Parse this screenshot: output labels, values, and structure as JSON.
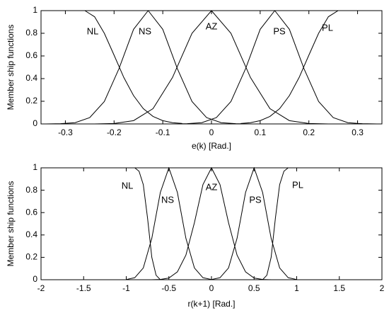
{
  "chart_data": [
    {
      "type": "line",
      "xlabel": "e(k) [Rad.]",
      "ylabel": "Member ship functions",
      "xlim": [
        -0.35,
        0.35
      ],
      "ylim": [
        0,
        1
      ],
      "xticks": [
        -0.3,
        -0.2,
        -0.1,
        0,
        0.1,
        0.2,
        0.3
      ],
      "yticks": [
        0,
        0.2,
        0.4,
        0.6,
        0.8,
        1
      ],
      "series": [
        {
          "name": "NL",
          "color": "#000000",
          "x": [
            -0.34,
            -0.3,
            -0.26,
            -0.24,
            -0.22,
            -0.2,
            -0.18,
            -0.16,
            -0.14,
            -0.12,
            -0.1,
            -0.08,
            -0.06
          ],
          "values": [
            1,
            1,
            1,
            0.946,
            0.8,
            0.607,
            0.41,
            0.25,
            0.135,
            0.066,
            0.029,
            0.011,
            0.004
          ]
        },
        {
          "name": "NS",
          "color": "#000000",
          "x": [
            -0.34,
            -0.31,
            -0.28,
            -0.25,
            -0.22,
            -0.19,
            -0.16,
            -0.13,
            -0.1,
            -0.07,
            -0.04,
            -0.01,
            0.02,
            0.05,
            0.08
          ],
          "values": [
            0,
            0.002,
            0.011,
            0.056,
            0.198,
            0.487,
            0.835,
            1,
            0.835,
            0.487,
            0.198,
            0.056,
            0.011,
            0.002,
            0
          ]
        },
        {
          "name": "AZ",
          "color": "#000000",
          "x": [
            -0.24,
            -0.2,
            -0.16,
            -0.12,
            -0.08,
            -0.04,
            0,
            0.04,
            0.08,
            0.12,
            0.16,
            0.2,
            0.24
          ],
          "values": [
            0,
            0.004,
            0.029,
            0.135,
            0.41,
            0.8,
            1,
            0.8,
            0.41,
            0.135,
            0.029,
            0.004,
            0
          ]
        },
        {
          "name": "PS",
          "color": "#000000",
          "x": [
            -0.08,
            -0.05,
            -0.02,
            0.01,
            0.04,
            0.07,
            0.1,
            0.13,
            0.16,
            0.19,
            0.22,
            0.25,
            0.28,
            0.31,
            0.34
          ],
          "values": [
            0,
            0.002,
            0.011,
            0.056,
            0.198,
            0.487,
            0.835,
            1,
            0.835,
            0.487,
            0.198,
            0.056,
            0.011,
            0.002,
            0
          ]
        },
        {
          "name": "PL",
          "color": "#000000",
          "x": [
            0.06,
            0.08,
            0.1,
            0.12,
            0.14,
            0.16,
            0.18,
            0.2,
            0.22,
            0.24,
            0.26,
            0.3,
            0.34
          ],
          "values": [
            0.004,
            0.011,
            0.029,
            0.066,
            0.135,
            0.25,
            0.41,
            0.607,
            0.8,
            0.946,
            1,
            1,
            1
          ]
        }
      ]
    },
    {
      "type": "line",
      "xlabel": "r(k+1) [Rad.]",
      "ylabel": "Member ship functions",
      "xlim": [
        -2,
        2
      ],
      "ylim": [
        0,
        1
      ],
      "xticks": [
        -2,
        -1.5,
        -1,
        -0.5,
        0,
        0.5,
        1,
        1.5,
        2
      ],
      "yticks": [
        0,
        0.2,
        0.4,
        0.6,
        0.8,
        1
      ],
      "series": [
        {
          "name": "NL",
          "color": "#000000",
          "x": [
            -1.8,
            -0.9,
            -0.85,
            -0.8,
            -0.75,
            -0.7,
            -0.65,
            -0.6,
            -0.5
          ],
          "values": [
            1,
            1,
            0.97,
            0.85,
            0.55,
            0.2,
            0.04,
            0,
            0
          ]
        },
        {
          "name": "NS",
          "color": "#000000",
          "x": [
            -1,
            -0.9,
            -0.8,
            -0.7,
            -0.6,
            -0.5,
            -0.4,
            -0.3,
            -0.2,
            -0.1,
            0
          ],
          "values": [
            0.002,
            0.018,
            0.105,
            0.37,
            0.78,
            1,
            0.78,
            0.37,
            0.105,
            0.018,
            0.002
          ]
        },
        {
          "name": "AZ",
          "color": "#000000",
          "x": [
            -0.7,
            -0.6,
            -0.5,
            -0.4,
            -0.3,
            -0.2,
            -0.1,
            0,
            0.1,
            0.2,
            0.3,
            0.4,
            0.5,
            0.6,
            0.7
          ],
          "values": [
            0,
            0.0025,
            0.015,
            0.07,
            0.22,
            0.51,
            0.85,
            1,
            0.85,
            0.51,
            0.22,
            0.07,
            0.015,
            0.0025,
            0
          ]
        },
        {
          "name": "PS",
          "color": "#000000",
          "x": [
            0,
            0.1,
            0.2,
            0.3,
            0.4,
            0.5,
            0.6,
            0.7,
            0.8,
            0.9,
            1
          ],
          "values": [
            0.002,
            0.018,
            0.105,
            0.37,
            0.78,
            1,
            0.78,
            0.37,
            0.105,
            0.018,
            0.002
          ]
        },
        {
          "name": "PL",
          "color": "#000000",
          "x": [
            0.5,
            0.6,
            0.65,
            0.7,
            0.75,
            0.8,
            0.85,
            0.9,
            1.8
          ],
          "values": [
            0,
            0,
            0.04,
            0.2,
            0.55,
            0.85,
            0.97,
            1,
            1
          ]
        }
      ]
    }
  ]
}
